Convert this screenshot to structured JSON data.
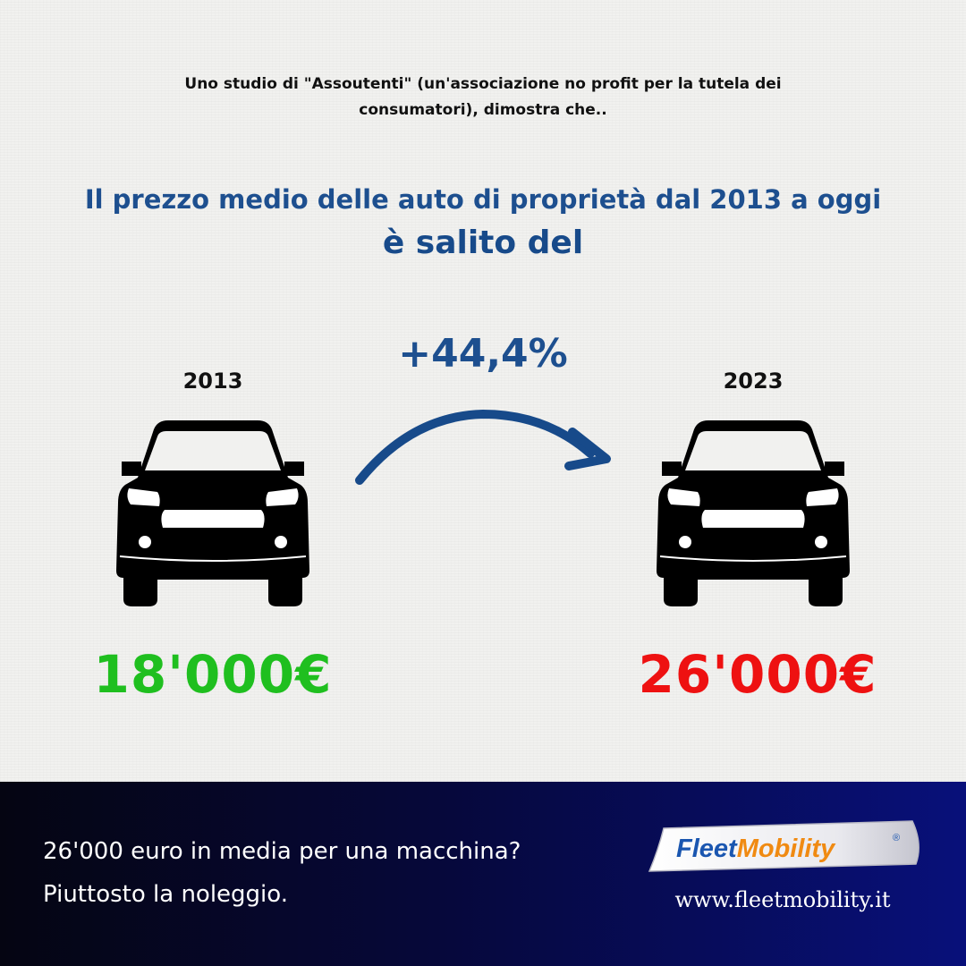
{
  "intro": {
    "line1": "Uno studio di \"Assoutenti\" (un'associazione no profit per la tutela dei",
    "line2": "consumatori), dimostra che.."
  },
  "headline": {
    "line1": "Il prezzo medio delle auto di proprietà dal 2013 a oggi",
    "line2": "è salito del"
  },
  "increase": "+44,4%",
  "before": {
    "year": "2013",
    "price": "18'000€"
  },
  "after": {
    "year": "2023",
    "price": "26'000€"
  },
  "footer": {
    "line1": "26'000 euro in media per una macchina?",
    "line2": "Piuttosto la noleggio.",
    "brand_part1": "Fleet",
    "brand_part2": "Mobility",
    "registered": "®",
    "url": "www.fleetmobility.it"
  },
  "colors": {
    "headline": "#1d4f8f",
    "old_price": "#1fbf1f",
    "new_price": "#ee1111",
    "brand_blue": "#1a56b0",
    "brand_orange": "#f08a12"
  },
  "icons": [
    "car-front-icon",
    "curved-arrow-icon"
  ]
}
